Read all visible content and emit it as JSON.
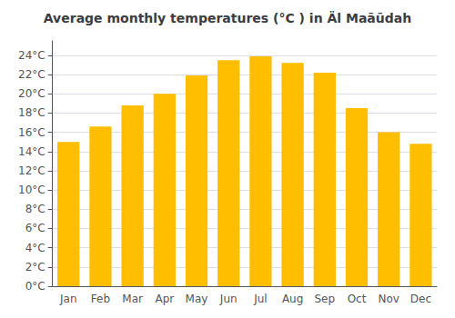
{
  "chart_data": {
    "type": "bar",
    "title": "Average monthly temperatures (°C ) in Äl Maāūdah",
    "categories": [
      "Jan",
      "Feb",
      "Mar",
      "Apr",
      "May",
      "Jun",
      "Jul",
      "Aug",
      "Sep",
      "Oct",
      "Nov",
      "Dec"
    ],
    "values": [
      15.0,
      16.6,
      18.8,
      20.0,
      21.9,
      23.5,
      23.9,
      23.2,
      22.2,
      18.5,
      16.0,
      14.8
    ],
    "color": "#FFBE00",
    "ylim": [
      0,
      25.5
    ],
    "yticks": [
      {
        "value": 0,
        "label": "0°C"
      },
      {
        "value": 2,
        "label": "2°C"
      },
      {
        "value": 4,
        "label": "4°C"
      },
      {
        "value": 6,
        "label": "6°C"
      },
      {
        "value": 8,
        "label": "8°C"
      },
      {
        "value": 10,
        "label": "10°C"
      },
      {
        "value": 12,
        "label": "12°C"
      },
      {
        "value": 14,
        "label": "14°C"
      },
      {
        "value": 16,
        "label": "16°C"
      },
      {
        "value": 18,
        "label": "18°C"
      },
      {
        "value": 20,
        "label": "20°C"
      },
      {
        "value": 22,
        "label": "22°C"
      },
      {
        "value": 24,
        "label": "24°C"
      }
    ],
    "grid": true
  }
}
